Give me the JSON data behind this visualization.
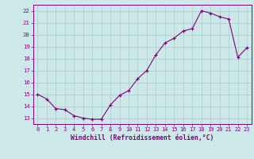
{
  "x": [
    0,
    1,
    2,
    3,
    4,
    5,
    6,
    7,
    8,
    9,
    10,
    11,
    12,
    13,
    14,
    15,
    16,
    17,
    18,
    19,
    20,
    21,
    22,
    23
  ],
  "y": [
    15.0,
    14.6,
    13.8,
    13.7,
    13.2,
    13.0,
    12.9,
    12.9,
    14.1,
    14.9,
    15.3,
    16.3,
    17.0,
    18.3,
    19.3,
    19.7,
    20.3,
    20.5,
    22.0,
    21.8,
    21.5,
    21.3,
    18.1,
    18.9
  ],
  "line_color": "#800080",
  "marker_color": "#800080",
  "bg_color": "#cce8e8",
  "grid_color": "#aacccc",
  "xlabel": "Windchill (Refroidissement éolien,°C)",
  "ylim": [
    12.5,
    22.5
  ],
  "xlim": [
    -0.5,
    23.5
  ],
  "yticks": [
    13,
    14,
    15,
    16,
    17,
    18,
    19,
    20,
    21,
    22
  ],
  "xticks": [
    0,
    1,
    2,
    3,
    4,
    5,
    6,
    7,
    8,
    9,
    10,
    11,
    12,
    13,
    14,
    15,
    16,
    17,
    18,
    19,
    20,
    21,
    22,
    23
  ],
  "axis_color": "#800080",
  "tick_color": "#800080"
}
